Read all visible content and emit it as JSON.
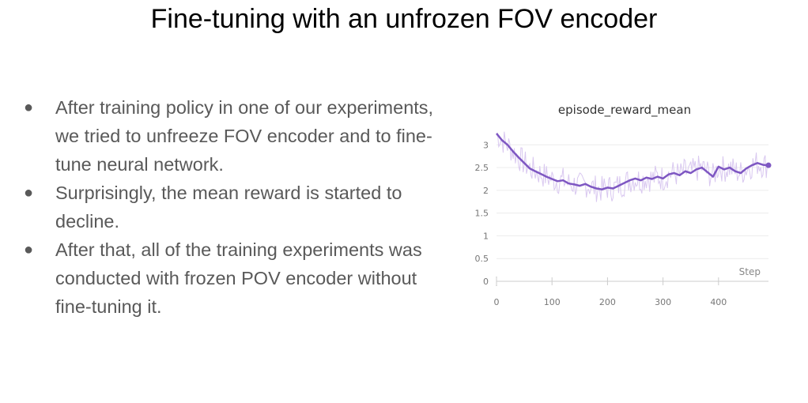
{
  "slide": {
    "title": "Fine-tuning with an unfrozen FOV encoder",
    "bullets": [
      "After training policy in one of our experiments, we tried to unfreeze FOV encoder and to fine-tune neural network.",
      "Surprisingly, the mean reward is started to decline.",
      "After that, all of the training experiments was conducted with frozen POV encoder without fine-tuning it."
    ]
  },
  "chart_data": {
    "type": "line",
    "title": "episode_reward_mean",
    "xlabel": "Step",
    "ylabel": "",
    "xlim": [
      0,
      490
    ],
    "ylim": [
      0,
      3.3
    ],
    "xticks": [
      0,
      100,
      200,
      300,
      400
    ],
    "yticks": [
      0,
      0.5,
      1,
      1.5,
      2,
      2.5,
      3
    ],
    "grid": true,
    "legend": "none",
    "series_color": "#7e57c2",
    "raw_color": "#d9c8f0",
    "series": [
      {
        "x": [
          0,
          10,
          20,
          30,
          40,
          50,
          60,
          70,
          80,
          90,
          100,
          110,
          120,
          130,
          140,
          150,
          160,
          170,
          180,
          190,
          200,
          210,
          220,
          230,
          240,
          250,
          260,
          270,
          280,
          290,
          300,
          310,
          320,
          330,
          340,
          350,
          360,
          370,
          380,
          390,
          400,
          410,
          420,
          430,
          440,
          450,
          460,
          470,
          480,
          490
        ],
        "y": [
          3.25,
          3.1,
          3.0,
          2.85,
          2.72,
          2.6,
          2.48,
          2.42,
          2.36,
          2.3,
          2.25,
          2.2,
          2.22,
          2.15,
          2.13,
          2.1,
          2.14,
          2.08,
          2.04,
          2.02,
          2.06,
          2.04,
          2.1,
          2.16,
          2.22,
          2.26,
          2.22,
          2.28,
          2.25,
          2.3,
          2.26,
          2.35,
          2.38,
          2.33,
          2.42,
          2.38,
          2.46,
          2.5,
          2.4,
          2.3,
          2.52,
          2.46,
          2.5,
          2.42,
          2.38,
          2.48,
          2.55,
          2.6,
          2.56,
          2.55
        ]
      }
    ]
  }
}
